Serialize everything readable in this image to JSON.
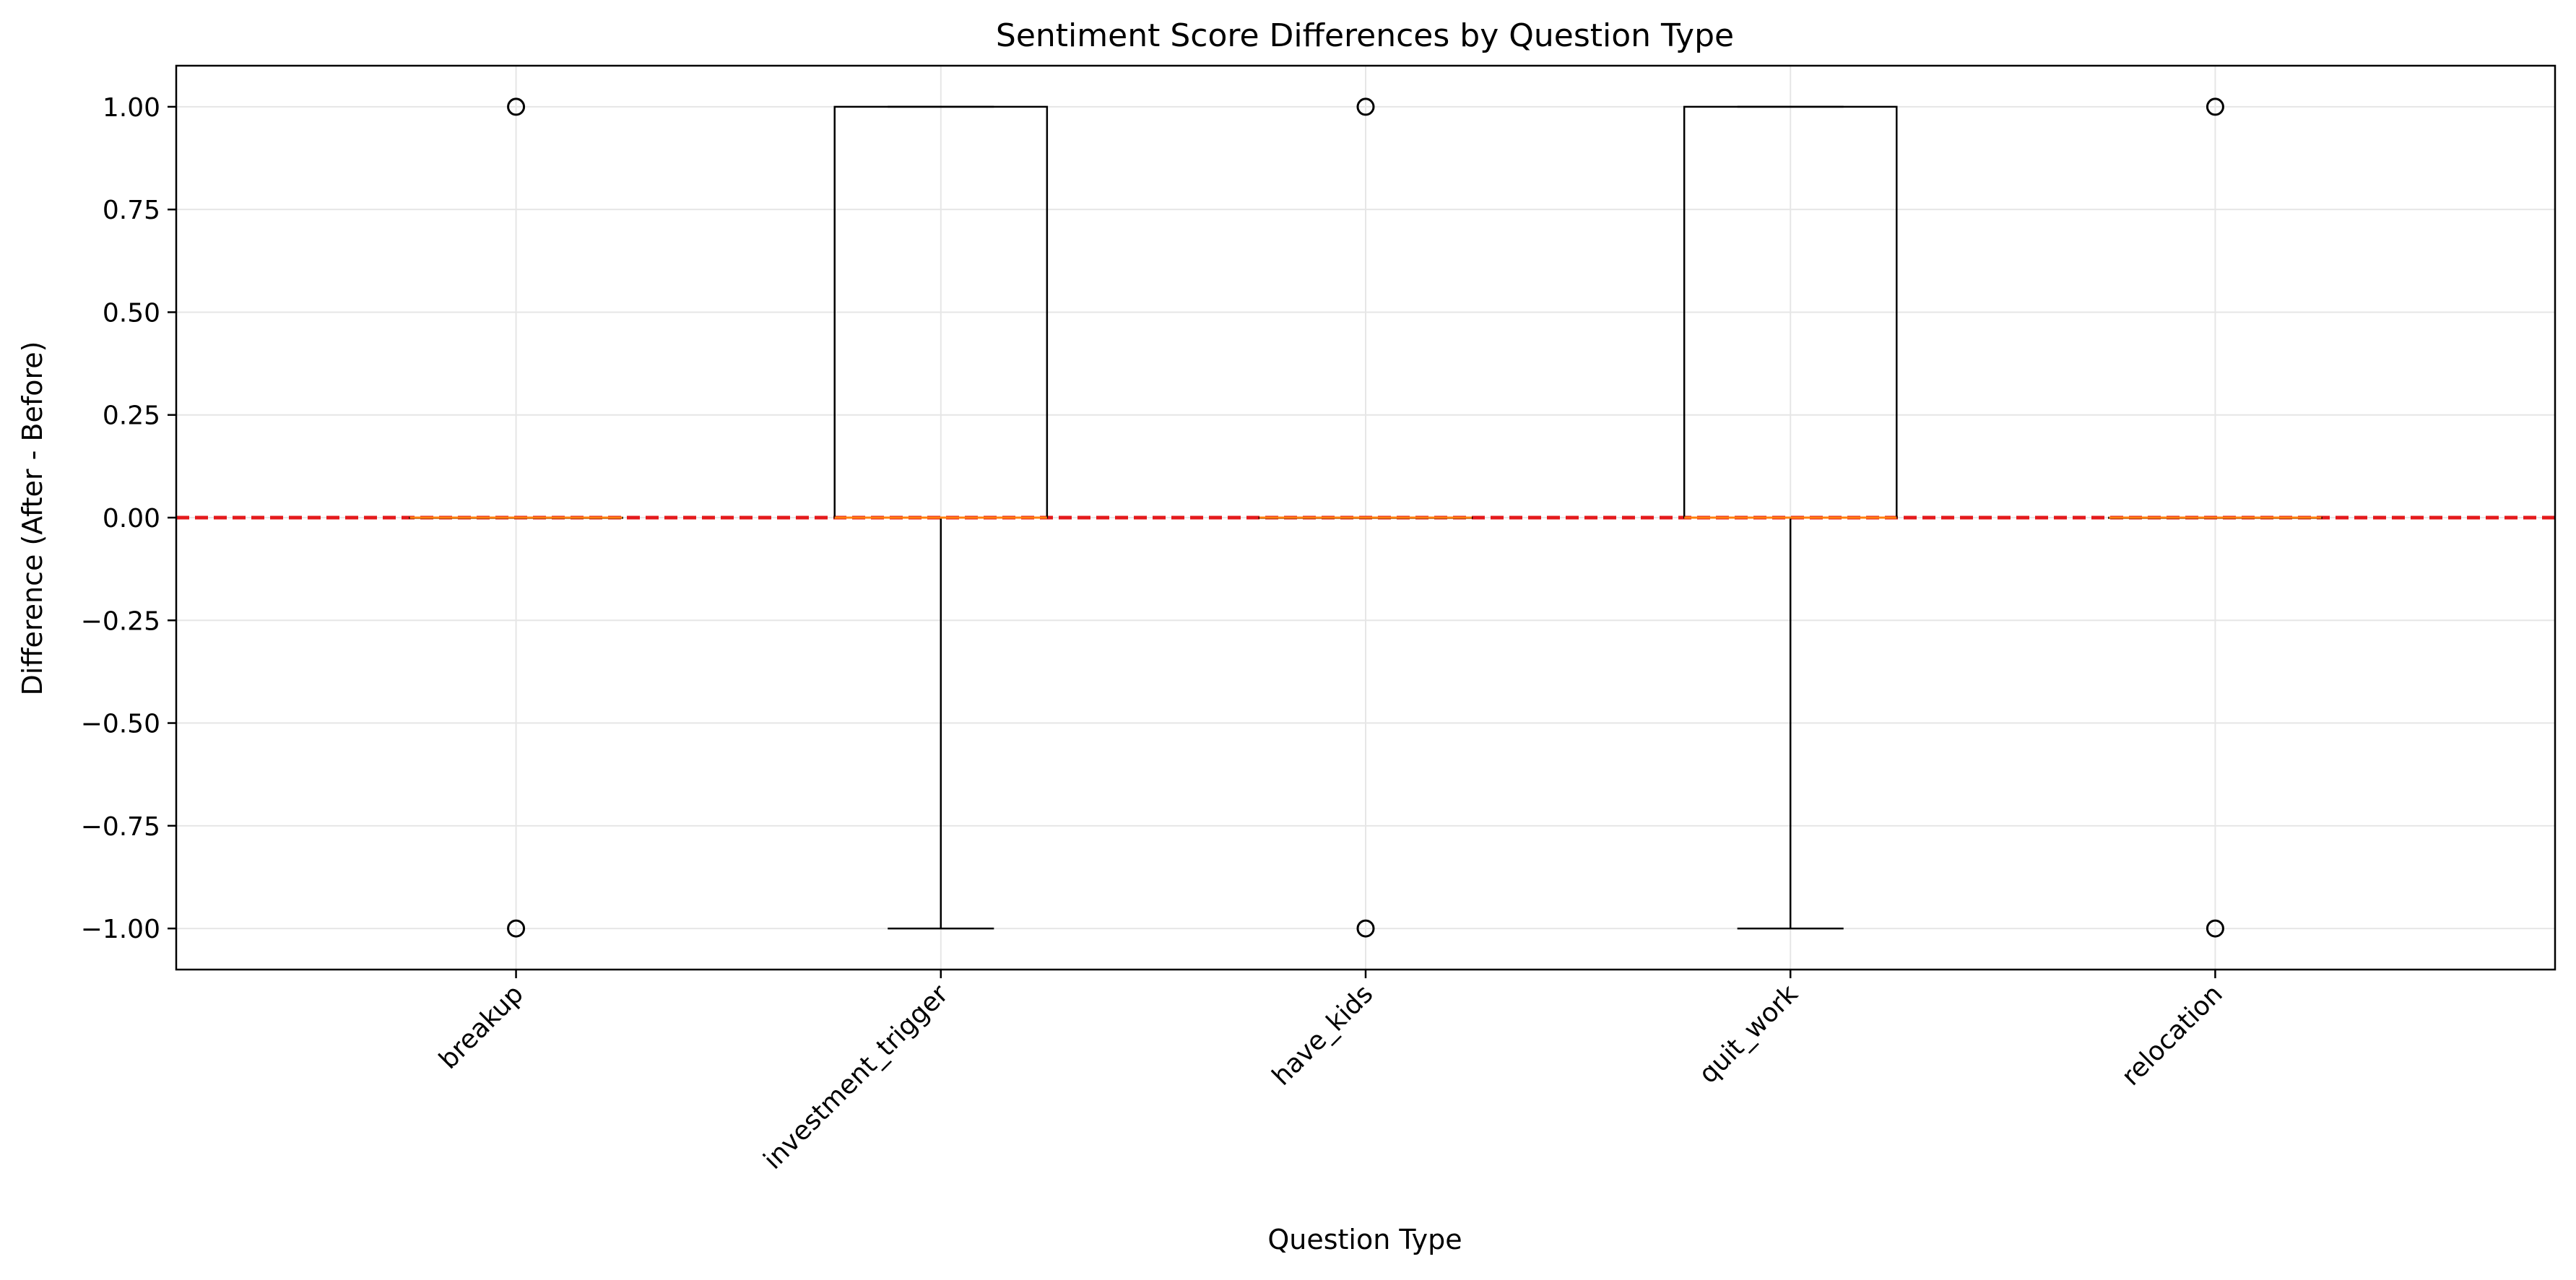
{
  "chart_data": {
    "type": "box",
    "title": "Sentiment Score Differences by Question Type",
    "xlabel": "Question Type",
    "ylabel": "Difference (After - Before)",
    "ylim": [
      -1.1,
      1.1
    ],
    "yticks": [
      -1.0,
      -0.75,
      -0.5,
      -0.25,
      0.0,
      0.25,
      0.5,
      0.75,
      1.0
    ],
    "ytick_labels": [
      "−1.00",
      "−0.75",
      "−0.50",
      "−0.25",
      "0.00",
      "0.25",
      "0.50",
      "0.75",
      "1.00"
    ],
    "grid": true,
    "categories": [
      "breakup",
      "investment_trigger",
      "have_kids",
      "quit_work",
      "relocation"
    ],
    "boxes": [
      {
        "category": "breakup",
        "whisker_low": 0,
        "q1": 0,
        "median": 0,
        "q3": 0,
        "whisker_high": 0,
        "outliers": [
          1,
          -1
        ]
      },
      {
        "category": "investment_trigger",
        "whisker_low": -1,
        "q1": 0,
        "median": 0,
        "q3": 1,
        "whisker_high": 1,
        "outliers": []
      },
      {
        "category": "have_kids",
        "whisker_low": 0,
        "q1": 0,
        "median": 0,
        "q3": 0,
        "whisker_high": 0,
        "outliers": [
          1,
          -1
        ]
      },
      {
        "category": "quit_work",
        "whisker_low": -1,
        "q1": 0,
        "median": 0,
        "q3": 1,
        "whisker_high": 1,
        "outliers": []
      },
      {
        "category": "relocation",
        "whisker_low": 0,
        "q1": 0,
        "median": 0,
        "q3": 0,
        "whisker_high": 0,
        "outliers": [
          1,
          -1
        ]
      }
    ],
    "reference_line": {
      "y": 0,
      "color": "#e41a1c",
      "style": "dashed"
    },
    "colors": {
      "box": "#000000",
      "median": "#ff7f0e",
      "grid": "#e6e6e6",
      "reference": "#e41a1c"
    }
  }
}
